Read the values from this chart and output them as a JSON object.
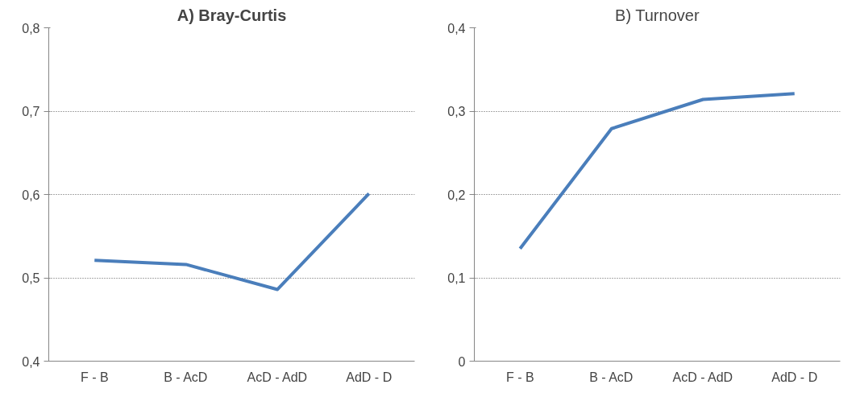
{
  "chart_data": [
    {
      "type": "line",
      "title": "A) Bray-Curtis",
      "categories": [
        "F - B",
        "B - AcD",
        "AcD - AdD",
        "AdD - D"
      ],
      "series": [
        {
          "color": "#4a7ebb",
          "values": [
            0.521,
            0.516,
            0.486,
            0.601
          ]
        }
      ],
      "ylim": [
        0.4,
        0.8
      ],
      "yticks": [
        {
          "value": 0.4,
          "label": "0,4"
        },
        {
          "value": 0.5,
          "label": "0,5"
        },
        {
          "value": 0.6,
          "label": "0,6"
        },
        {
          "value": 0.7,
          "label": "0,7"
        },
        {
          "value": 0.8,
          "label": "0,8"
        }
      ],
      "grid": "y",
      "marker": "none",
      "line_style": "solid"
    },
    {
      "type": "line",
      "title": "B) Turnover",
      "categories": [
        "F - B",
        "B - AcD",
        "AcD - AdD",
        "AdD - D"
      ],
      "series": [
        {
          "color": "#4a7ebb",
          "values": [
            0.135,
            0.279,
            0.314,
            0.321
          ]
        }
      ],
      "ylim": [
        0,
        0.4
      ],
      "yticks": [
        0,
        {
          "value": 0.1,
          "label": "0,1"
        },
        {
          "value": 0.2,
          "label": "0,2"
        },
        {
          "value": 0.3,
          "label": "0,3"
        },
        {
          "value": 0.4,
          "label": "0,4"
        }
      ],
      "grid": "y",
      "marker": "none",
      "line_style": "solid"
    }
  ]
}
